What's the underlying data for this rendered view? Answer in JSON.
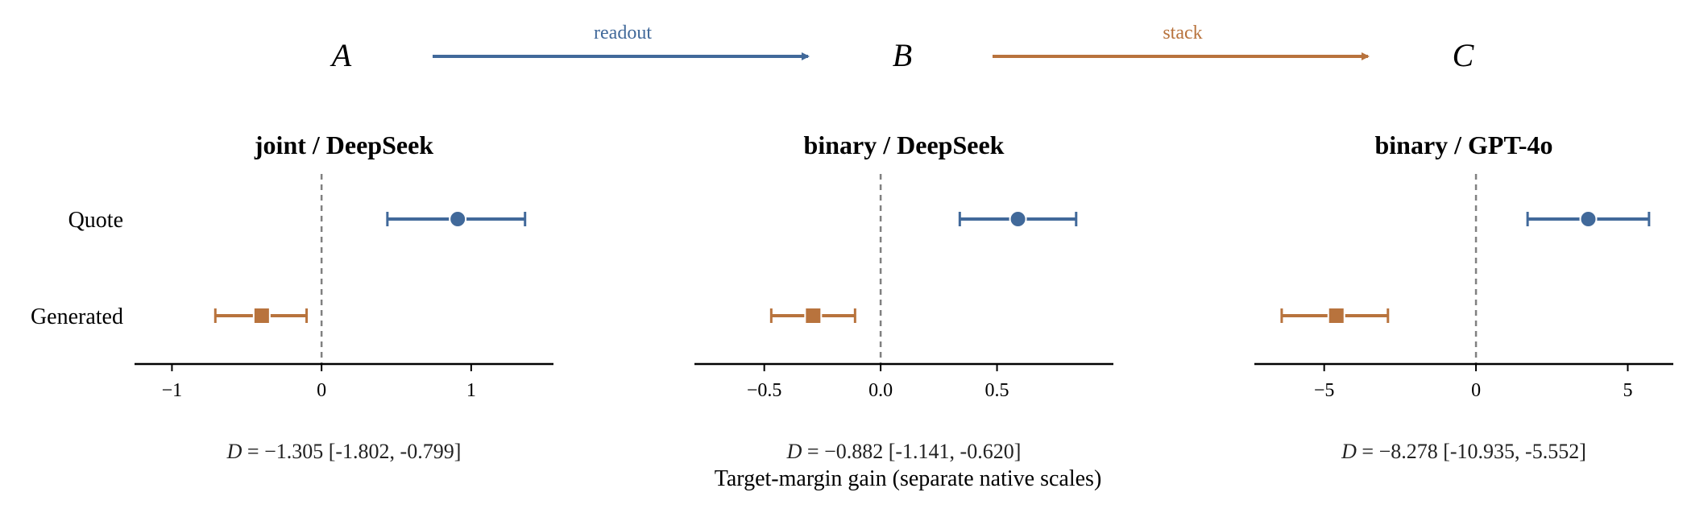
{
  "colors": {
    "quote": "#41699a",
    "generated": "#b8733d",
    "zero_line": "#808080",
    "axis": "#000000"
  },
  "flow": {
    "nodes": [
      "A",
      "B",
      "C"
    ],
    "arrows": [
      {
        "label": "readout",
        "color": "#41699a"
      },
      {
        "label": "stack",
        "color": "#b8733d"
      }
    ]
  },
  "xlabel": "Target-margin gain (separate native scales)",
  "chart_data": [
    {
      "type": "scatter",
      "title": "joint / DeepSeek",
      "categories": [
        "Quote",
        "Generated"
      ],
      "xlim": [
        -1.25,
        1.55
      ],
      "xticks": [
        -1,
        0,
        1
      ],
      "xtick_labels": [
        "−1",
        "0",
        "1"
      ],
      "series": [
        {
          "name": "Quote",
          "marker": "circle",
          "value": 0.91,
          "ci": [
            0.44,
            1.36
          ]
        },
        {
          "name": "Generated",
          "marker": "square",
          "value": -0.4,
          "ci": [
            -0.71,
            -0.1
          ]
        }
      ],
      "reference_line": 0,
      "d_annotation": {
        "prefix": "D",
        "value": "−1.305",
        "ci": "[-1.802, -0.799]"
      }
    },
    {
      "type": "scatter",
      "title": "binary / DeepSeek",
      "categories": [
        "Quote",
        "Generated"
      ],
      "xlim": [
        -0.8,
        1.0
      ],
      "xticks": [
        -0.5,
        0.0,
        0.5
      ],
      "xtick_labels": [
        "−0.5",
        "0.0",
        "0.5"
      ],
      "series": [
        {
          "name": "Quote",
          "marker": "circle",
          "value": 0.59,
          "ci": [
            0.34,
            0.84
          ]
        },
        {
          "name": "Generated",
          "marker": "square",
          "value": -0.29,
          "ci": [
            -0.47,
            -0.11
          ]
        }
      ],
      "reference_line": 0,
      "d_annotation": {
        "prefix": "D",
        "value": "−0.882",
        "ci": "[-1.141, -0.620]"
      }
    },
    {
      "type": "scatter",
      "title": "binary / GPT-4o",
      "categories": [
        "Quote",
        "Generated"
      ],
      "xlim": [
        -7.3,
        6.5
      ],
      "xticks": [
        -5,
        0,
        5
      ],
      "xtick_labels": [
        "−5",
        "0",
        "5"
      ],
      "series": [
        {
          "name": "Quote",
          "marker": "circle",
          "value": 3.7,
          "ci": [
            1.7,
            5.7
          ]
        },
        {
          "name": "Generated",
          "marker": "square",
          "value": -4.6,
          "ci": [
            -6.4,
            -2.9
          ]
        }
      ],
      "reference_line": 0,
      "d_annotation": {
        "prefix": "D",
        "value": "−8.278",
        "ci": "[-10.935, -5.552]"
      }
    }
  ]
}
